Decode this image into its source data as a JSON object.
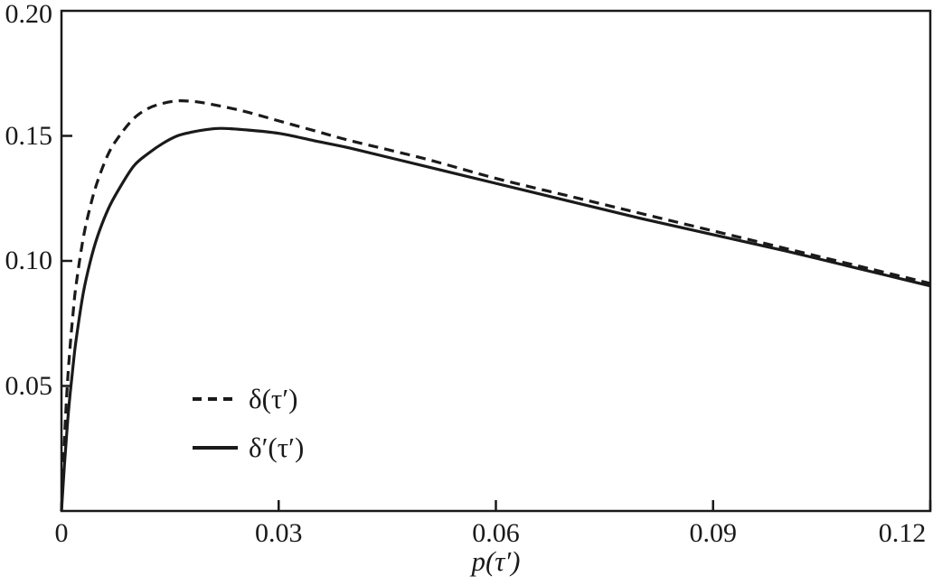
{
  "figure": {
    "background": "#ffffff",
    "axis_color": "#1a1a1a"
  },
  "chart_data": {
    "type": "line",
    "title": "",
    "xlabel": "p(τ′)",
    "ylabel": "",
    "xlim": [
      0,
      0.12
    ],
    "ylim": [
      0,
      0.2
    ],
    "grid": false,
    "frame": "box",
    "legend_position": "inside-lower-left",
    "x_ticks": {
      "values": [
        0,
        0.03,
        0.06,
        0.09,
        0.12
      ],
      "labels": [
        "0",
        "0.03",
        "0.06",
        "0.09",
        "0.12"
      ]
    },
    "y_ticks": {
      "values": [
        0.05,
        0.1,
        0.15,
        0.2
      ],
      "labels": [
        "0.05",
        "0.10",
        "0.15",
        "0.20"
      ]
    },
    "series": [
      {
        "name": "δ(τ′)",
        "line_style": "dashed",
        "color": "#1a1a1a",
        "points": [
          [
            0,
            0
          ],
          [
            0.0004,
            0.028
          ],
          [
            0.0008,
            0.05
          ],
          [
            0.0012,
            0.066
          ],
          [
            0.0016,
            0.079
          ],
          [
            0.002,
            0.09
          ],
          [
            0.003,
            0.109
          ],
          [
            0.004,
            0.122
          ],
          [
            0.005,
            0.132
          ],
          [
            0.0065,
            0.143
          ],
          [
            0.008,
            0.15
          ],
          [
            0.01,
            0.157
          ],
          [
            0.012,
            0.161
          ],
          [
            0.014,
            0.163
          ],
          [
            0.016,
            0.164
          ],
          [
            0.018,
            0.1638
          ],
          [
            0.02,
            0.163
          ],
          [
            0.025,
            0.16
          ],
          [
            0.03,
            0.156
          ],
          [
            0.035,
            0.152
          ],
          [
            0.04,
            0.148
          ],
          [
            0.05,
            0.141
          ],
          [
            0.06,
            0.133
          ],
          [
            0.07,
            0.126
          ],
          [
            0.08,
            0.119
          ],
          [
            0.09,
            0.112
          ],
          [
            0.1,
            0.105
          ],
          [
            0.11,
            0.098
          ],
          [
            0.12,
            0.091
          ]
        ]
      },
      {
        "name": "δ′(τ′)",
        "line_style": "solid",
        "color": "#1a1a1a",
        "points": [
          [
            0,
            0
          ],
          [
            0.0004,
            0.018
          ],
          [
            0.0008,
            0.034
          ],
          [
            0.0012,
            0.047
          ],
          [
            0.0016,
            0.058
          ],
          [
            0.002,
            0.068
          ],
          [
            0.003,
            0.087
          ],
          [
            0.004,
            0.1
          ],
          [
            0.005,
            0.11
          ],
          [
            0.0065,
            0.121
          ],
          [
            0.008,
            0.129
          ],
          [
            0.01,
            0.138
          ],
          [
            0.012,
            0.143
          ],
          [
            0.014,
            0.147
          ],
          [
            0.016,
            0.15
          ],
          [
            0.018,
            0.1515
          ],
          [
            0.02,
            0.1525
          ],
          [
            0.022,
            0.153
          ],
          [
            0.025,
            0.1525
          ],
          [
            0.03,
            0.151
          ],
          [
            0.035,
            0.148
          ],
          [
            0.04,
            0.145
          ],
          [
            0.05,
            0.138
          ],
          [
            0.06,
            0.131
          ],
          [
            0.07,
            0.124
          ],
          [
            0.08,
            0.117
          ],
          [
            0.09,
            0.1105
          ],
          [
            0.1,
            0.104
          ],
          [
            0.11,
            0.097
          ],
          [
            0.12,
            0.09
          ]
        ]
      }
    ]
  }
}
